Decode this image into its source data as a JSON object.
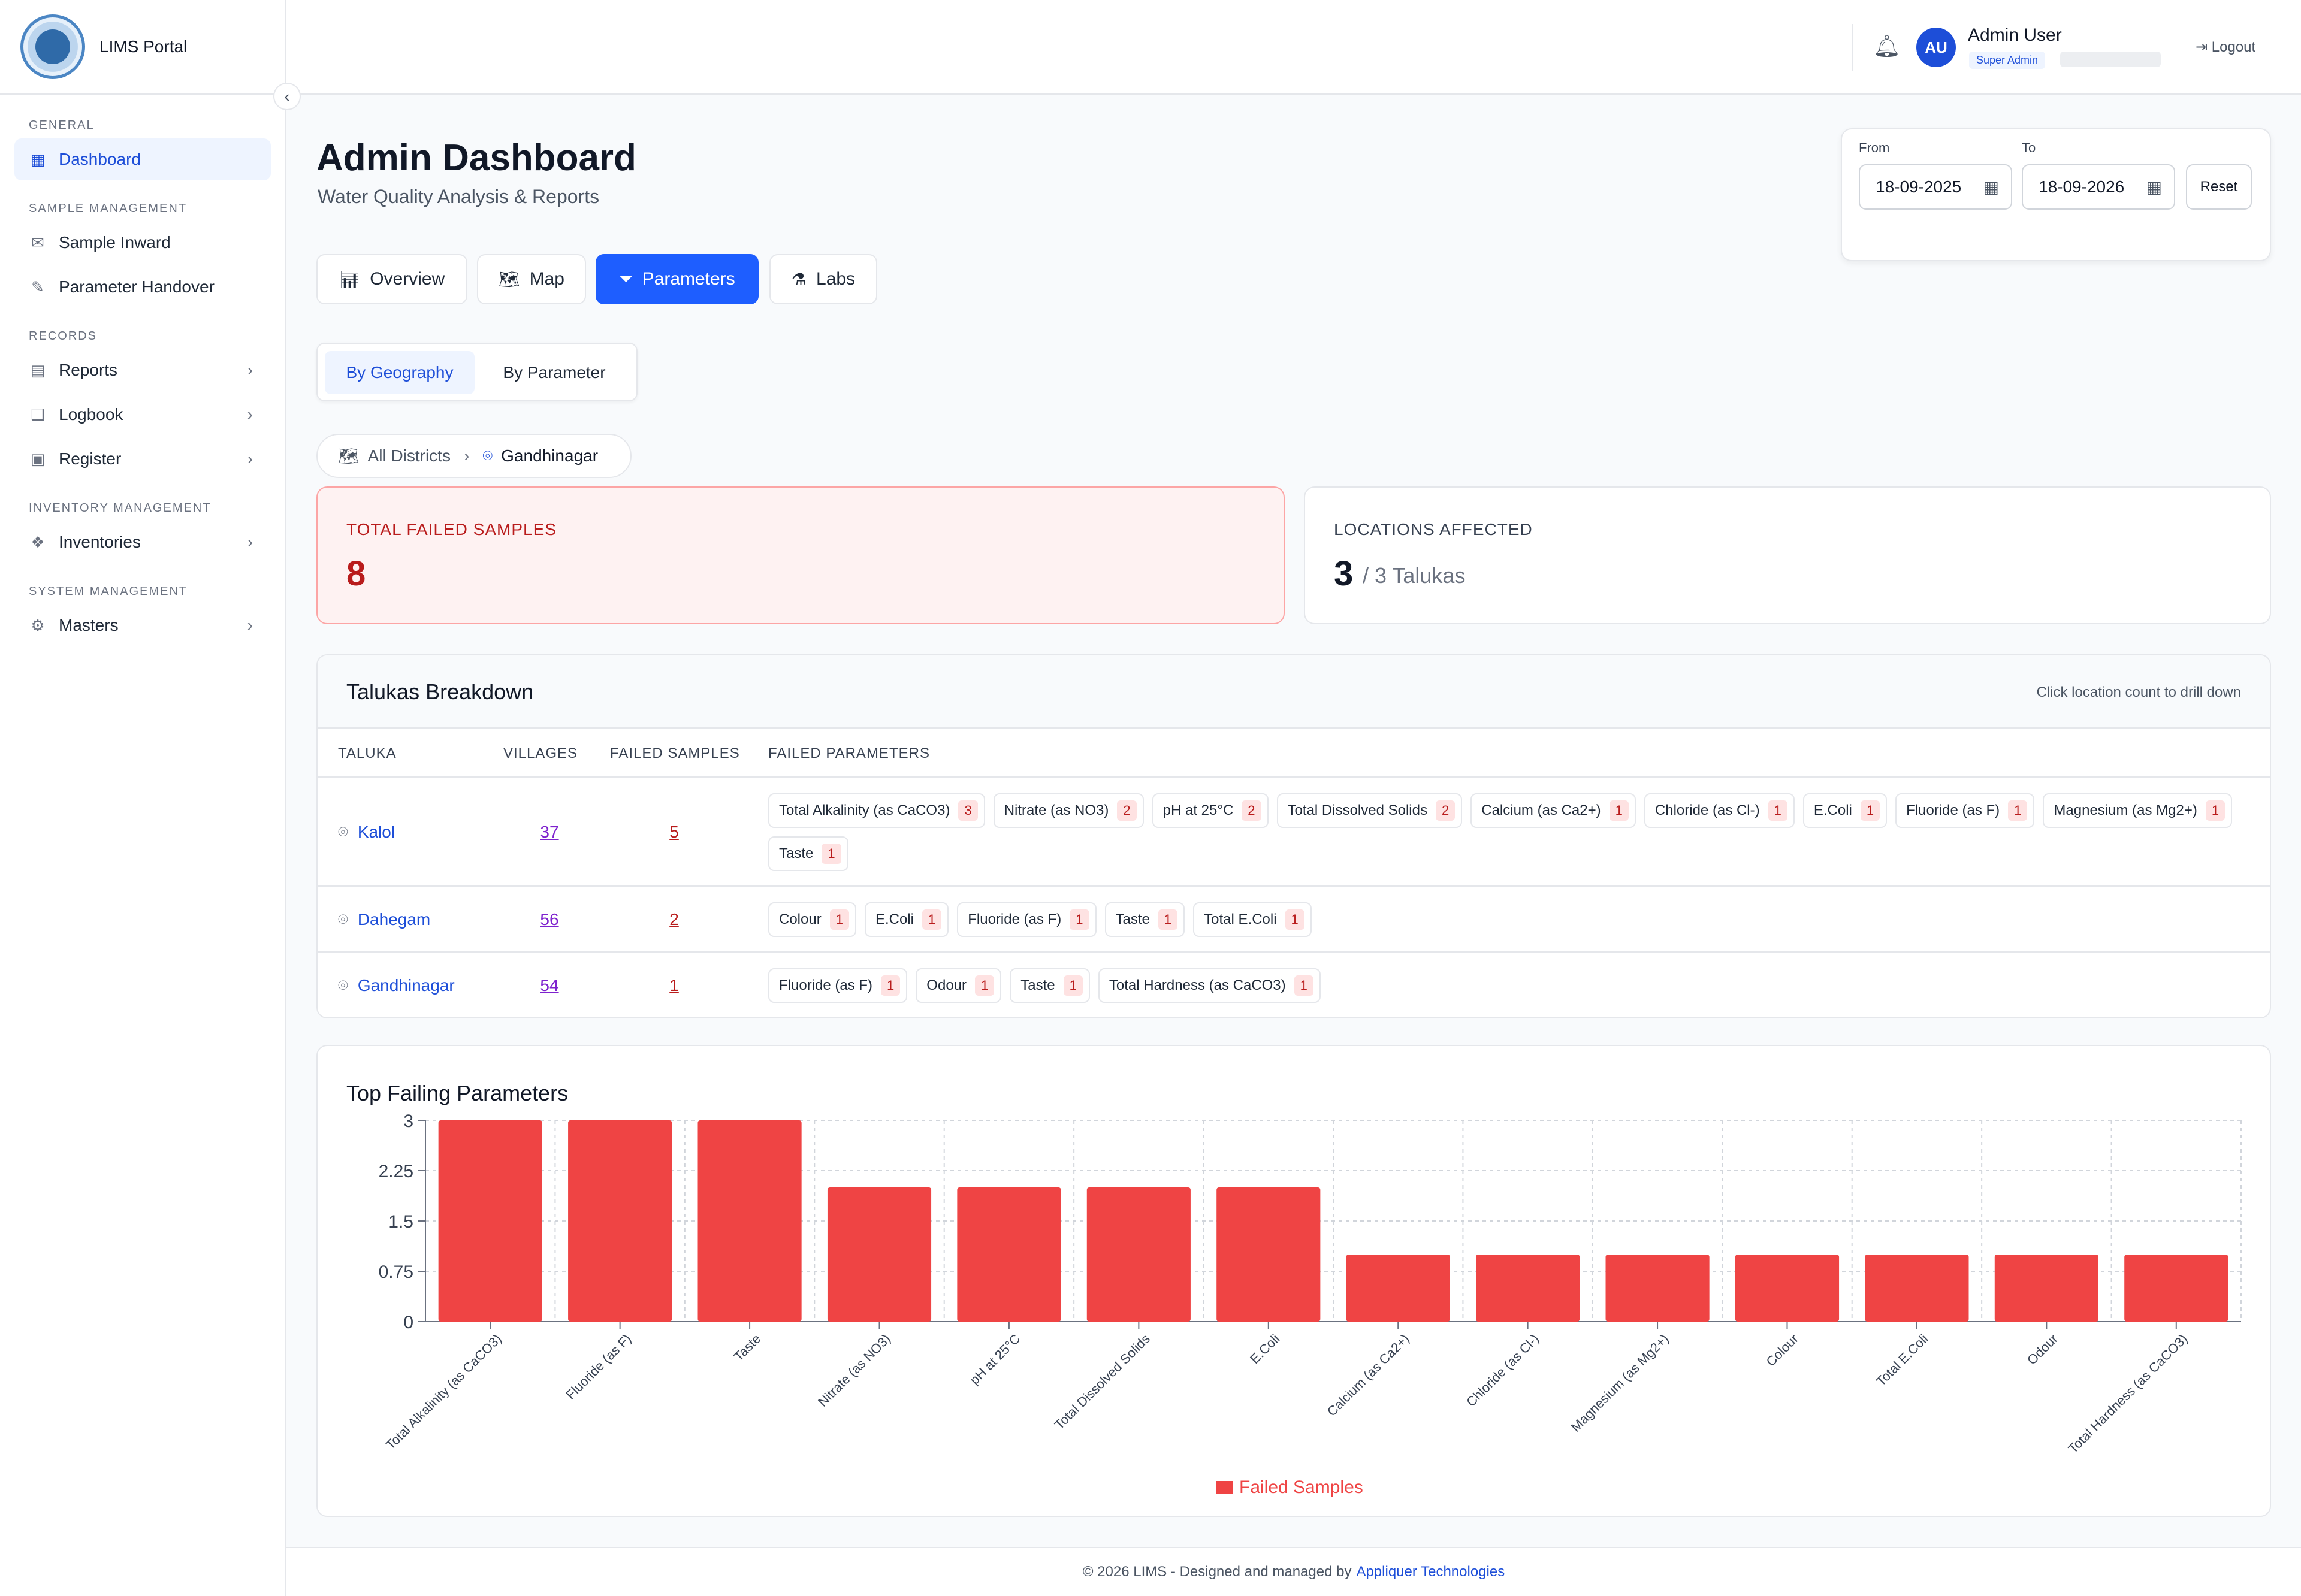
{
  "app": {
    "brand": "LIMS Portal"
  },
  "sidebar": {
    "sections": [
      {
        "title": "General",
        "items": [
          {
            "label": "Dashboard",
            "icon": "grid-icon",
            "active": true,
            "chevron": false
          }
        ]
      },
      {
        "title": "Sample Management",
        "items": [
          {
            "label": "Sample Inward",
            "icon": "inbox-icon",
            "chevron": false
          },
          {
            "label": "Parameter Handover",
            "icon": "pencil-icon",
            "chevron": false
          }
        ]
      },
      {
        "title": "Records",
        "items": [
          {
            "label": "Reports",
            "icon": "file-icon",
            "chevron": true
          },
          {
            "label": "Logbook",
            "icon": "book-icon",
            "chevron": true
          },
          {
            "label": "Register",
            "icon": "clipboard-icon",
            "chevron": true
          }
        ]
      },
      {
        "title": "Inventory Management",
        "items": [
          {
            "label": "Inventories",
            "icon": "boxes-icon",
            "chevron": true
          }
        ]
      },
      {
        "title": "System Management",
        "items": [
          {
            "label": "Masters",
            "icon": "gear-icon",
            "chevron": true
          }
        ]
      }
    ]
  },
  "topbar": {
    "avatar_initials": "AU",
    "user_name": "Admin User",
    "user_role": "Super Admin",
    "logout_label": "Logout"
  },
  "page": {
    "title": "Admin Dashboard",
    "subtitle": "Water Quality Analysis & Reports"
  },
  "date_filter": {
    "from_label": "From",
    "from_value": "18-09-2025",
    "to_label": "To",
    "to_value": "18-09-2026",
    "reset_label": "Reset"
  },
  "tabs": [
    {
      "label": "Overview",
      "icon": "bar-chart-icon",
      "active": false
    },
    {
      "label": "Map",
      "icon": "map-icon",
      "active": false
    },
    {
      "label": "Parameters",
      "icon": "filter-icon",
      "active": true
    },
    {
      "label": "Labs",
      "icon": "flask-icon",
      "active": false
    }
  ],
  "view_toggle": {
    "geography": "By Geography",
    "parameter": "By Parameter",
    "active": "geography"
  },
  "breadcrumb": {
    "root": "All Districts",
    "current": "Gandhinagar"
  },
  "stats": {
    "failed_label": "TOTAL FAILED SAMPLES",
    "failed_value": "8",
    "locations_label": "LOCATIONS AFFECTED",
    "locations_value": "3",
    "locations_sub": "/ 3 Talukas"
  },
  "talukas": {
    "title": "Talukas Breakdown",
    "hint": "Click location count to drill down",
    "columns": [
      "TALUKA",
      "VILLAGES",
      "FAILED SAMPLES",
      "FAILED PARAMETERS"
    ],
    "rows": [
      {
        "name": "Kalol",
        "villages": "37",
        "failed": "5",
        "params": [
          {
            "name": "Total Alkalinity (as CaCO3)",
            "count": "3"
          },
          {
            "name": "Nitrate (as NO3)",
            "count": "2"
          },
          {
            "name": "pH at 25°C",
            "count": "2"
          },
          {
            "name": "Total Dissolved Solids",
            "count": "2"
          },
          {
            "name": "Calcium (as Ca2+)",
            "count": "1"
          },
          {
            "name": "Chloride (as Cl-)",
            "count": "1"
          },
          {
            "name": "E.Coli",
            "count": "1"
          },
          {
            "name": "Fluoride (as F)",
            "count": "1"
          },
          {
            "name": "Magnesium (as Mg2+)",
            "count": "1"
          },
          {
            "name": "Taste",
            "count": "1"
          }
        ]
      },
      {
        "name": "Dahegam",
        "villages": "56",
        "failed": "2",
        "params": [
          {
            "name": "Colour",
            "count": "1"
          },
          {
            "name": "E.Coli",
            "count": "1"
          },
          {
            "name": "Fluoride (as F)",
            "count": "1"
          },
          {
            "name": "Taste",
            "count": "1"
          },
          {
            "name": "Total E.Coli",
            "count": "1"
          }
        ]
      },
      {
        "name": "Gandhinagar",
        "villages": "54",
        "failed": "1",
        "params": [
          {
            "name": "Fluoride (as F)",
            "count": "1"
          },
          {
            "name": "Odour",
            "count": "1"
          },
          {
            "name": "Taste",
            "count": "1"
          },
          {
            "name": "Total Hardness (as CaCO3)",
            "count": "1"
          }
        ]
      }
    ]
  },
  "chart_data": {
    "type": "bar",
    "title": "Top Failing Parameters",
    "categories": [
      "Total Alkalinity (as CaCO3)",
      "Fluoride (as F)",
      "Taste",
      "Nitrate (as NO3)",
      "pH at 25°C",
      "Total Dissolved Solids",
      "E.Coli",
      "Calcium (as Ca2+)",
      "Chloride (as Cl-)",
      "Magnesium (as Mg2+)",
      "Colour",
      "Total E.Coli",
      "Odour",
      "Total Hardness (as CaCO3)"
    ],
    "series": [
      {
        "name": "Failed Samples",
        "values": [
          3,
          3,
          3,
          2,
          2,
          2,
          2,
          1,
          1,
          1,
          1,
          1,
          1,
          1
        ],
        "color": "#ef4444"
      }
    ],
    "yticks": [
      "0",
      "0.75",
      "1.5",
      "2.25",
      "3"
    ],
    "ylim": [
      0,
      3
    ],
    "grid": true,
    "legend": "bottom"
  },
  "footer": {
    "text": "© 2026 LIMS - Designed and managed by",
    "link": "Appliquer Technologies"
  }
}
